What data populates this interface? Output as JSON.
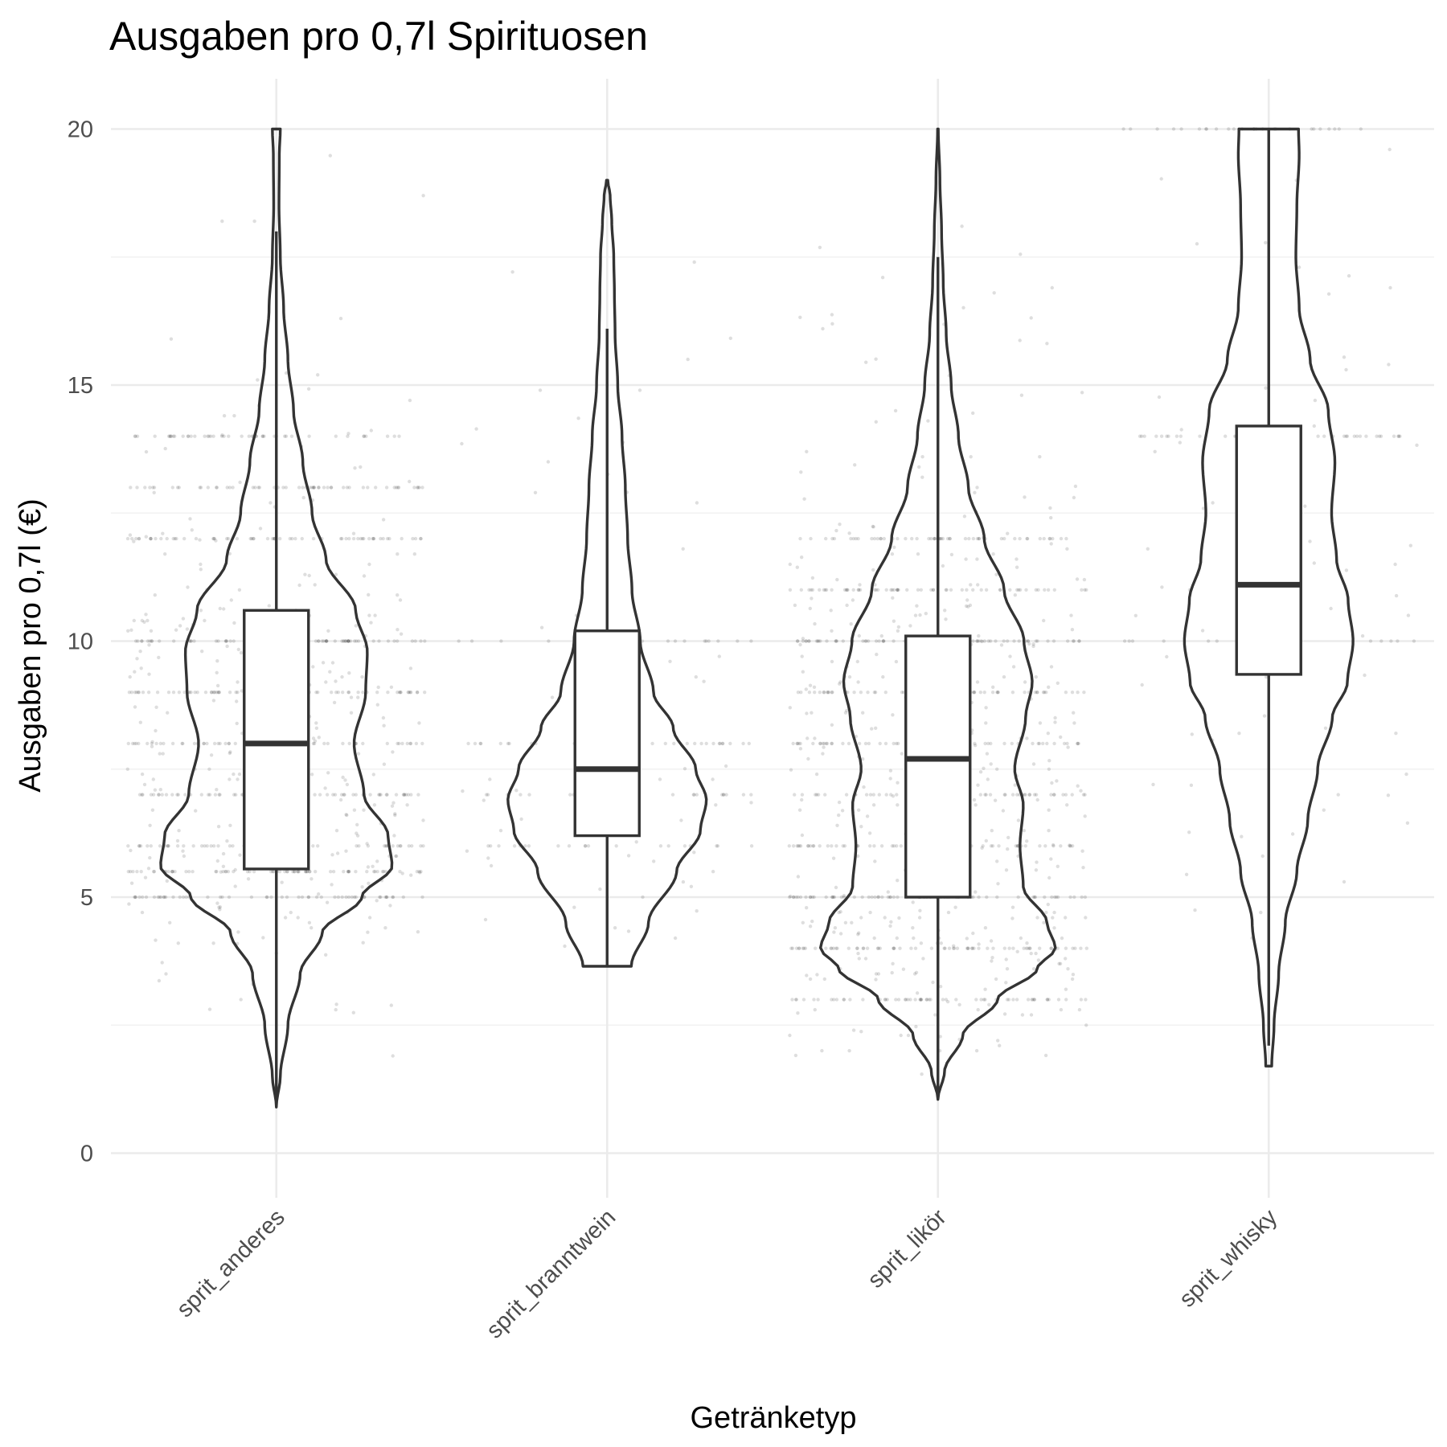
{
  "chart_data": {
    "type": "violin",
    "title": "Ausgaben pro 0,7l Spirituosen",
    "xlabel": "Getränketyp",
    "ylabel": "Ausgaben pro 0,7l (€)",
    "ylim": [
      -0.8,
      20.9
    ],
    "y_ticks": [
      0,
      5,
      10,
      15,
      20
    ],
    "y_minor_ticks": [
      2.5,
      7.5,
      12.5,
      17.5
    ],
    "grid": true,
    "legend": "none",
    "categories": [
      "sprit_anderes",
      "sprit_branntwein",
      "sprit_likör",
      "sprit_whisky"
    ],
    "series": [
      {
        "category": "sprit_anderes",
        "box": {
          "whisker_low": 0.9,
          "q1": 5.55,
          "median": 8.0,
          "q3": 10.6,
          "whisker_high": 18.0
        },
        "violin": {
          "y_min": 0.9,
          "y_max": 20.0,
          "profile": [
            [
              0.9,
              0.0
            ],
            [
              1.5,
              0.012
            ],
            [
              2.5,
              0.035
            ],
            [
              3.5,
              0.072
            ],
            [
              4.3,
              0.138
            ],
            [
              5.0,
              0.258
            ],
            [
              5.6,
              0.35
            ],
            [
              6.2,
              0.338
            ],
            [
              7.0,
              0.265
            ],
            [
              8.0,
              0.235
            ],
            [
              9.0,
              0.27
            ],
            [
              9.8,
              0.275
            ],
            [
              10.6,
              0.24
            ],
            [
              11.6,
              0.15
            ],
            [
              12.5,
              0.108
            ],
            [
              13.5,
              0.08
            ],
            [
              14.5,
              0.052
            ],
            [
              15.5,
              0.035
            ],
            [
              16.5,
              0.022
            ],
            [
              17.5,
              0.012
            ],
            [
              18.5,
              0.008
            ],
            [
              19.5,
              0.009
            ],
            [
              20.0,
              0.012
            ]
          ]
        },
        "jitter": {
          "count": 900,
          "spread": 0.45,
          "clusters": [
            5.0,
            5.5,
            6.0,
            7.0,
            8.0,
            9.0,
            10.0,
            12.0,
            13.0,
            14.0
          ]
        }
      },
      {
        "category": "sprit_branntwein",
        "box": {
          "whisker_low": 3.65,
          "q1": 6.2,
          "median": 7.5,
          "q3": 10.2,
          "whisker_high": 16.1
        },
        "violin": {
          "y_min": 3.65,
          "y_max": 19.0,
          "profile": [
            [
              3.65,
              0.073
            ],
            [
              4.5,
              0.125
            ],
            [
              5.5,
              0.21
            ],
            [
              6.3,
              0.282
            ],
            [
              6.9,
              0.3
            ],
            [
              7.5,
              0.268
            ],
            [
              8.3,
              0.2
            ],
            [
              9.0,
              0.14
            ],
            [
              10.0,
              0.1
            ],
            [
              11.0,
              0.075
            ],
            [
              12.0,
              0.062
            ],
            [
              13.0,
              0.055
            ],
            [
              14.0,
              0.045
            ],
            [
              15.0,
              0.032
            ],
            [
              16.0,
              0.024
            ],
            [
              16.8,
              0.022
            ],
            [
              17.5,
              0.02
            ],
            [
              18.2,
              0.014
            ],
            [
              18.7,
              0.009
            ],
            [
              19.0,
              0.002
            ]
          ]
        },
        "jitter": {
          "count": 160,
          "spread": 0.45,
          "clusters": [
            6.0,
            7.0,
            8.0,
            10.0
          ]
        }
      },
      {
        "category": "sprit_likör",
        "box": {
          "whisker_low": 1.05,
          "q1": 5.0,
          "median": 7.7,
          "q3": 10.1,
          "whisker_high": 17.5
        },
        "violin": {
          "y_min": 1.05,
          "y_max": 20.0,
          "profile": [
            [
              1.05,
              0.0
            ],
            [
              1.6,
              0.02
            ],
            [
              2.3,
              0.075
            ],
            [
              3.0,
              0.18
            ],
            [
              3.6,
              0.3
            ],
            [
              4.0,
              0.355
            ],
            [
              4.5,
              0.33
            ],
            [
              5.2,
              0.258
            ],
            [
              6.0,
              0.248
            ],
            [
              6.8,
              0.258
            ],
            [
              7.5,
              0.232
            ],
            [
              8.5,
              0.265
            ],
            [
              9.2,
              0.285
            ],
            [
              10.0,
              0.26
            ],
            [
              11.0,
              0.2
            ],
            [
              12.0,
              0.14
            ],
            [
              13.0,
              0.092
            ],
            [
              14.0,
              0.062
            ],
            [
              15.0,
              0.04
            ],
            [
              16.0,
              0.025
            ],
            [
              17.0,
              0.016
            ],
            [
              18.0,
              0.011
            ],
            [
              19.0,
              0.006
            ],
            [
              20.0,
              0.001
            ]
          ]
        },
        "jitter": {
          "count": 1000,
          "spread": 0.45,
          "clusters": [
            3.0,
            4.0,
            5.0,
            6.0,
            7.0,
            8.0,
            9.0,
            10.0,
            11.0,
            12.0
          ]
        }
      },
      {
        "category": "sprit_whisky",
        "box": {
          "whisker_low": 2.1,
          "q1": 9.35,
          "median": 11.1,
          "q3": 14.2,
          "whisker_high": 20.0
        },
        "violin": {
          "y_min": 1.7,
          "y_max": 20.0,
          "profile": [
            [
              1.7,
              0.009
            ],
            [
              2.5,
              0.016
            ],
            [
              3.5,
              0.03
            ],
            [
              4.5,
              0.05
            ],
            [
              5.5,
              0.085
            ],
            [
              6.5,
              0.118
            ],
            [
              7.5,
              0.148
            ],
            [
              8.5,
              0.192
            ],
            [
              9.2,
              0.238
            ],
            [
              10.0,
              0.255
            ],
            [
              10.8,
              0.24
            ],
            [
              11.6,
              0.205
            ],
            [
              12.5,
              0.19
            ],
            [
              13.5,
              0.2
            ],
            [
              14.5,
              0.18
            ],
            [
              15.5,
              0.125
            ],
            [
              16.5,
              0.092
            ],
            [
              17.5,
              0.082
            ],
            [
              18.5,
              0.085
            ],
            [
              19.5,
              0.092
            ],
            [
              20.0,
              0.09
            ]
          ]
        },
        "jitter": {
          "count": 150,
          "spread": 0.45,
          "clusters": [
            10.0,
            14.0,
            20.0
          ]
        }
      }
    ]
  }
}
